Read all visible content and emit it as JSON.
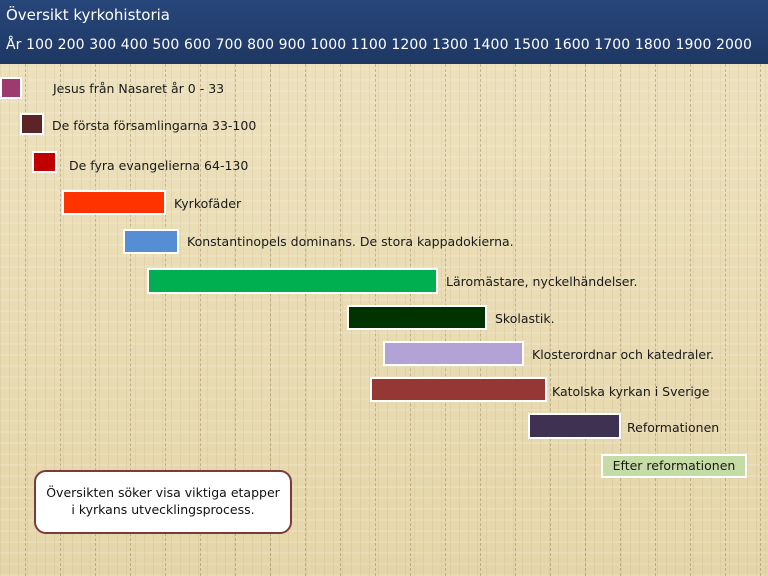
{
  "header": {
    "title": "Översikt kyrkohistoria",
    "years_axis": "År 100  200  300  400  500  600  700  800  900 1000 1100 1200 1300 1400 1500 1600 1700 1800 1900 2000"
  },
  "timeline": [
    {
      "label": "Jesus från Nasaret år 0 - 33",
      "start": 0,
      "end": 33,
      "color": "#9e3a6e"
    },
    {
      "label": "De första församlingarna 33-100",
      "start": 33,
      "end": 100,
      "color": "#5c2424"
    },
    {
      "label": "De fyra evangelierna 64-130",
      "start": 64,
      "end": 130,
      "color": "#c00000"
    },
    {
      "label": "Kyrkofäder",
      "start": 150,
      "end": 450,
      "color": "#ff3300"
    },
    {
      "label": "Konstantinopels dominans. De stora kappadokierna.",
      "start": 330,
      "end": 500,
      "color": "#558ed5"
    },
    {
      "label": "Läromästare, nyckelhändelser.",
      "start": 400,
      "end": 1250,
      "color": "#00b050"
    },
    {
      "label": "Skolastik.",
      "start": 1000,
      "end": 1400,
      "color": "#003300"
    },
    {
      "label": "Klosterordnar och katedraler.",
      "start": 1100,
      "end": 1500,
      "color": "#b2a2d6"
    },
    {
      "label": "Katolska kyrkan i Sverige",
      "start": 1070,
      "end": 1570,
      "color": "#953735"
    },
    {
      "label": "Reformationen",
      "start": 1520,
      "end": 1780,
      "color": "#3f3151"
    },
    {
      "label": "Efter reformationen",
      "start": 1740,
      "end": 2000,
      "color": "#c5dca6"
    }
  ],
  "note": "Översikten söker visa viktiga etapper i kyrkans utvecklingsprocess."
}
